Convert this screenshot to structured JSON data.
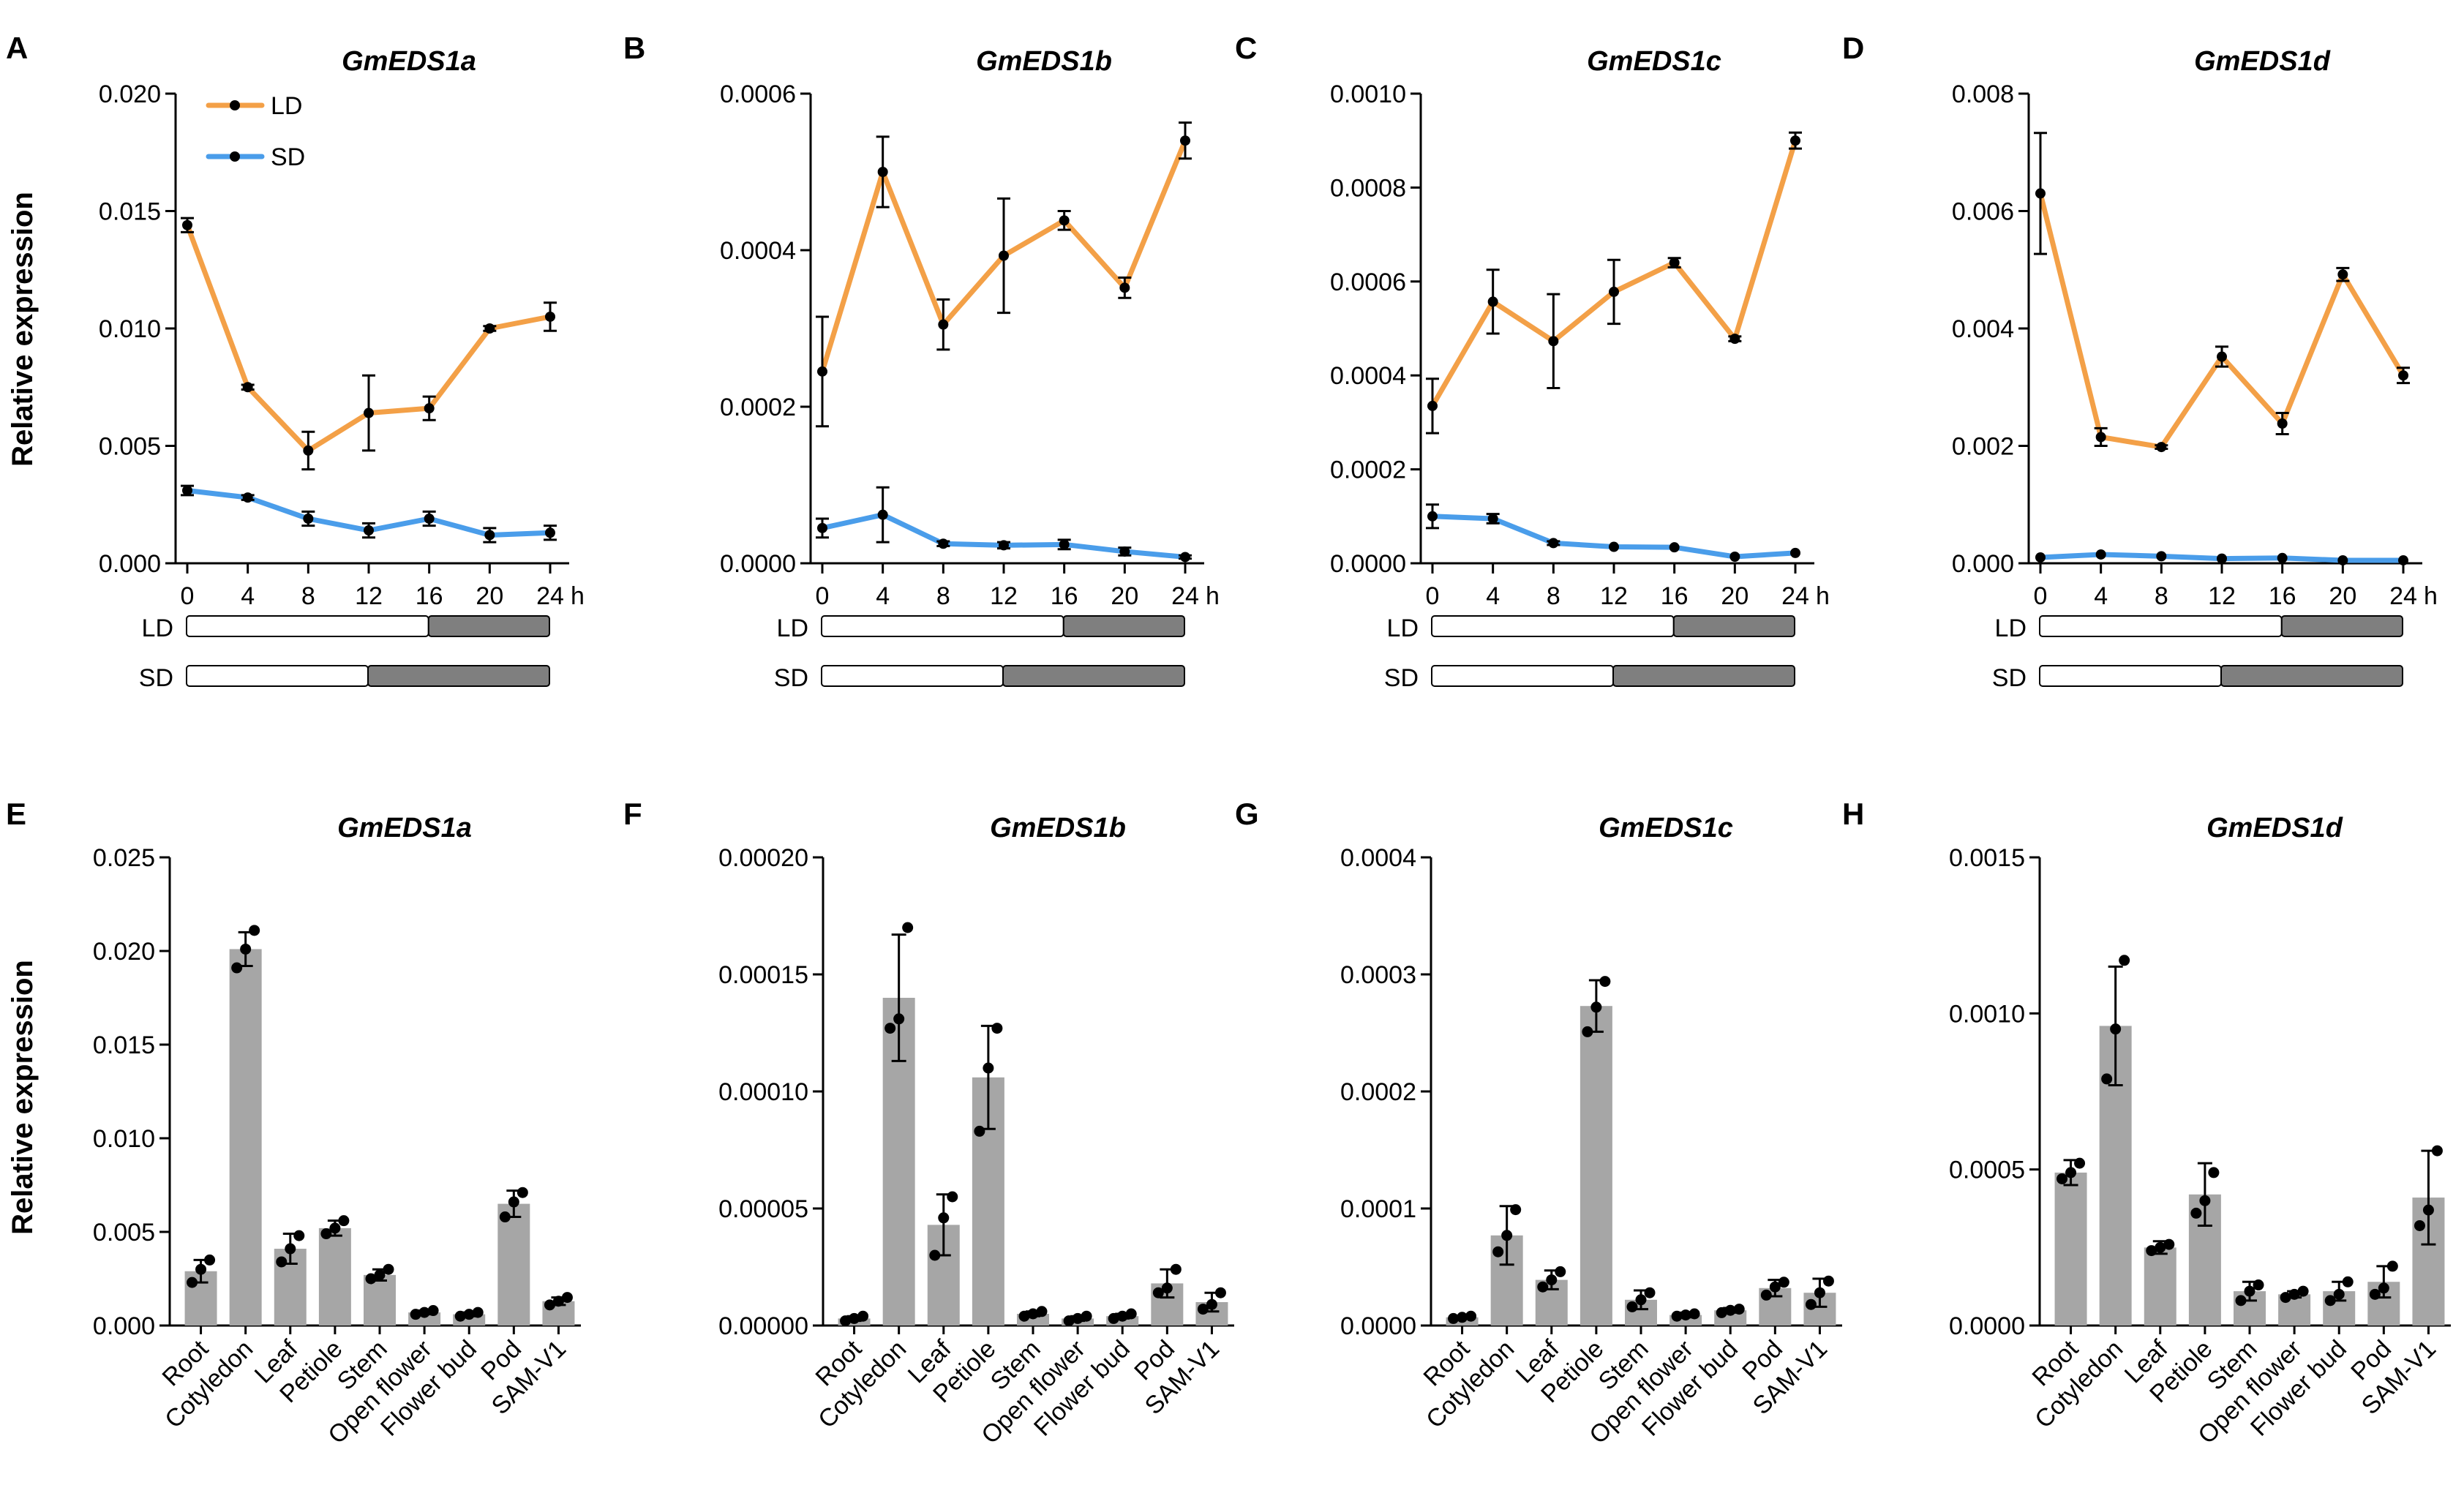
{
  "figure": {
    "ylabel": "Relative expression",
    "time_unit": "h",
    "legend": [
      {
        "label": "LD",
        "color": "#F3A047"
      },
      {
        "label": "SD",
        "color": "#4A9DEA"
      }
    ],
    "photoperiod_labels": [
      "LD",
      "SD"
    ]
  },
  "colors": {
    "LD": "#F3A047",
    "SD": "#4A9DEA",
    "bar": "#A6A6A6",
    "dark": "#7F7F7F"
  },
  "chart_data": [
    {
      "panel": "A",
      "type": "line",
      "title": "GmEDS1a",
      "x": [
        0,
        4,
        8,
        12,
        16,
        20,
        24
      ],
      "xticklabels": [
        "0",
        "4",
        "8",
        "12",
        "16",
        "20",
        "24"
      ],
      "ylim": [
        0,
        0.02
      ],
      "yticks": [
        0,
        0.005,
        0.01,
        0.015,
        0.02
      ],
      "yticklabels": [
        "0.000",
        "0.005",
        "0.010",
        "0.015",
        "0.020"
      ],
      "series": [
        {
          "name": "LD",
          "values": [
            0.0144,
            0.0075,
            0.0048,
            0.0064,
            0.0066,
            0.01,
            0.0105
          ],
          "errors": [
            0.0003,
            0.0001,
            0.0008,
            0.0016,
            0.0005,
            0.0001,
            0.0006
          ]
        },
        {
          "name": "SD",
          "values": [
            0.0031,
            0.0028,
            0.0019,
            0.0014,
            0.0019,
            0.0012,
            0.0013
          ],
          "errors": [
            0.0002,
            0.0001,
            0.0003,
            0.0003,
            0.0003,
            0.0003,
            0.0003
          ]
        }
      ],
      "photoperiod": {
        "LD_light_hours": 16,
        "SD_light_hours": 12
      }
    },
    {
      "panel": "B",
      "type": "line",
      "title": "GmEDS1b",
      "x": [
        0,
        4,
        8,
        12,
        16,
        20,
        24
      ],
      "xticklabels": [
        "0",
        "4",
        "8",
        "12",
        "16",
        "20",
        "24"
      ],
      "ylim": [
        0,
        0.0006
      ],
      "yticks": [
        0,
        0.0002,
        0.0004,
        0.0006
      ],
      "yticklabels": [
        "0.0000",
        "0.0002",
        "0.0004",
        "0.0006"
      ],
      "series": [
        {
          "name": "LD",
          "values": [
            0.000245,
            0.0005,
            0.000305,
            0.000393,
            0.000438,
            0.000352,
            0.00054
          ],
          "errors": [
            7e-05,
            4.5e-05,
            3.2e-05,
            7.3e-05,
            1.2e-05,
            1.3e-05,
            2.3e-05
          ]
        },
        {
          "name": "SD",
          "values": [
            4.5e-05,
            6.2e-05,
            2.5e-05,
            2.3e-05,
            2.4e-05,
            1.5e-05,
            8e-06
          ],
          "errors": [
            1.2e-05,
            3.5e-05,
            3e-06,
            4e-06,
            6e-06,
            5e-06,
            2e-06
          ]
        }
      ],
      "photoperiod": {
        "LD_light_hours": 16,
        "SD_light_hours": 12
      }
    },
    {
      "panel": "C",
      "type": "line",
      "title": "GmEDS1c",
      "x": [
        0,
        4,
        8,
        12,
        16,
        20,
        24
      ],
      "xticklabels": [
        "0",
        "4",
        "8",
        "12",
        "16",
        "20",
        "24"
      ],
      "ylim": [
        0,
        0.001
      ],
      "yticks": [
        0,
        0.0002,
        0.0004,
        0.0006,
        0.0008,
        0.001
      ],
      "yticklabels": [
        "0.0000",
        "0.0002",
        "0.0004",
        "0.0006",
        "0.0008",
        "0.0010"
      ],
      "series": [
        {
          "name": "LD",
          "values": [
            0.000335,
            0.000557,
            0.000473,
            0.000578,
            0.00064,
            0.000478,
            0.0009
          ],
          "errors": [
            5.8e-05,
            6.8e-05,
            0.0001,
            6.8e-05,
            1e-05,
            5e-06,
            1.7e-05
          ]
        },
        {
          "name": "SD",
          "values": [
            0.0001,
            9.5e-05,
            4.3e-05,
            3.5e-05,
            3.4e-05,
            1.4e-05,
            2.2e-05
          ],
          "errors": [
            2.5e-05,
            1e-05,
            4e-06,
            3e-06,
            3e-06,
            3e-06,
            3e-06
          ]
        }
      ],
      "photoperiod": {
        "LD_light_hours": 16,
        "SD_light_hours": 12
      }
    },
    {
      "panel": "D",
      "type": "line",
      "title": "GmEDS1d",
      "x": [
        0,
        4,
        8,
        12,
        16,
        20,
        24
      ],
      "xticklabels": [
        "0",
        "4",
        "8",
        "12",
        "16",
        "20",
        "24"
      ],
      "ylim": [
        0,
        0.008
      ],
      "yticks": [
        0,
        0.002,
        0.004,
        0.006,
        0.008
      ],
      "yticklabels": [
        "0.000",
        "0.002",
        "0.004",
        "0.006",
        "0.008"
      ],
      "series": [
        {
          "name": "LD",
          "values": [
            0.0063,
            0.00215,
            0.00198,
            0.00352,
            0.00238,
            0.00492,
            0.0032
          ],
          "errors": [
            0.00103,
            0.00015,
            3e-05,
            0.00017,
            0.00018,
            0.00011,
            0.00013
          ]
        },
        {
          "name": "SD",
          "values": [
            0.0001,
            0.00015,
            0.00012,
            8e-05,
            9e-05,
            5e-05,
            5e-05
          ],
          "errors": [
            2e-05,
            2e-05,
            2e-05,
            2e-05,
            2e-05,
            1e-05,
            1e-05
          ]
        }
      ],
      "photoperiod": {
        "LD_light_hours": 16,
        "SD_light_hours": 12
      }
    },
    {
      "panel": "E",
      "type": "bar",
      "title": "GmEDS1a",
      "categories": [
        "Root",
        "Cotyledon",
        "Leaf",
        "Petiole",
        "Stem",
        "Open flower",
        "Flower bud",
        "Pod",
        "SAM-V1"
      ],
      "ylim": [
        0,
        0.025
      ],
      "yticks": [
        0,
        0.005,
        0.01,
        0.015,
        0.02,
        0.025
      ],
      "yticklabels": [
        "0.000",
        "0.005",
        "0.010",
        "0.015",
        "0.020",
        "0.025"
      ],
      "values": [
        0.0029,
        0.0201,
        0.0041,
        0.0052,
        0.0027,
        0.0007,
        0.0006,
        0.0065,
        0.0013
      ],
      "errors": [
        0.0006,
        0.0009,
        0.0008,
        0.0004,
        0.0003,
        0.0001,
        0.0001,
        0.0007,
        0.0002
      ],
      "replicates": [
        [
          0.0023,
          0.003,
          0.0035
        ],
        [
          0.0191,
          0.0201,
          0.0211
        ],
        [
          0.0034,
          0.0041,
          0.0048
        ],
        [
          0.0049,
          0.0052,
          0.0056
        ],
        [
          0.0025,
          0.0027,
          0.003
        ],
        [
          0.0006,
          0.0007,
          0.0008
        ],
        [
          0.0005,
          0.0006,
          0.0007
        ],
        [
          0.0058,
          0.0066,
          0.0071
        ],
        [
          0.0011,
          0.0013,
          0.0015
        ]
      ]
    },
    {
      "panel": "F",
      "type": "bar",
      "title": "GmEDS1b",
      "categories": [
        "Root",
        "Cotyledon",
        "Leaf",
        "Petiole",
        "Stem",
        "Open flower",
        "Flower bud",
        "Pod",
        "SAM-V1"
      ],
      "ylim": [
        0,
        0.0002
      ],
      "yticks": [
        0,
        5e-05,
        0.0001,
        0.00015,
        0.0002
      ],
      "yticklabels": [
        "0.00000",
        "0.00005",
        "0.00010",
        "0.00015",
        "0.00020"
      ],
      "values": [
        3e-06,
        0.00014,
        4.3e-05,
        0.000106,
        5e-06,
        3e-06,
        4e-06,
        1.8e-05,
        1e-05
      ],
      "errors": [
        1e-06,
        2.7e-05,
        1.3e-05,
        2.2e-05,
        1e-06,
        1e-06,
        1e-06,
        6e-06,
        4e-06
      ],
      "replicates": [
        [
          2e-06,
          3e-06,
          4e-06
        ],
        [
          0.000127,
          0.000131,
          0.00017
        ],
        [
          3e-05,
          4.6e-05,
          5.5e-05
        ],
        [
          8.3e-05,
          0.00011,
          0.000127
        ],
        [
          4e-06,
          5e-06,
          6e-06
        ],
        [
          2e-06,
          3e-06,
          4e-06
        ],
        [
          3e-06,
          4e-06,
          5e-06
        ],
        [
          1.4e-05,
          1.6e-05,
          2.4e-05
        ],
        [
          7e-06,
          9e-06,
          1.4e-05
        ]
      ]
    },
    {
      "panel": "G",
      "type": "bar",
      "title": "GmEDS1c",
      "categories": [
        "Root",
        "Cotyledon",
        "Leaf",
        "Petiole",
        "Stem",
        "Open flower",
        "Flower bud",
        "Pod",
        "SAM-V1"
      ],
      "ylim": [
        0,
        0.0004
      ],
      "yticks": [
        0,
        0.0001,
        0.0002,
        0.0003,
        0.0004
      ],
      "yticklabels": [
        "0.0000",
        "0.0001",
        "0.0002",
        "0.0003",
        "0.0004"
      ],
      "values": [
        7e-06,
        7.7e-05,
        3.9e-05,
        0.000273,
        2.2e-05,
        9e-06,
        1.3e-05,
        3.2e-05,
        2.8e-05
      ],
      "errors": [
        1e-06,
        2.5e-05,
        8e-06,
        2.2e-05,
        8e-06,
        2e-06,
        2e-06,
        7e-06,
        1.2e-05
      ],
      "replicates": [
        [
          6e-06,
          7e-06,
          8e-06
        ],
        [
          6.3e-05,
          7.7e-05,
          9.9e-05
        ],
        [
          3.3e-05,
          3.9e-05,
          4.6e-05
        ],
        [
          0.000251,
          0.000272,
          0.000294
        ],
        [
          1.6e-05,
          2.2e-05,
          2.8e-05
        ],
        [
          8e-06,
          9e-06,
          1e-05
        ],
        [
          1.1e-05,
          1.3e-05,
          1.4e-05
        ],
        [
          2.6e-05,
          3.3e-05,
          3.7e-05
        ],
        [
          1.8e-05,
          2.8e-05,
          3.8e-05
        ]
      ]
    },
    {
      "panel": "H",
      "type": "bar",
      "title": "GmEDS1d",
      "categories": [
        "Root",
        "Cotyledon",
        "Leaf",
        "Petiole",
        "Stem",
        "Open flower",
        "Flower bud",
        "Pod",
        "SAM-V1"
      ],
      "ylim": [
        0,
        0.0015
      ],
      "yticks": [
        0,
        0.0005,
        0.001,
        0.0015
      ],
      "yticklabels": [
        "0.0000",
        "0.0005",
        "0.0010",
        "0.0015"
      ],
      "values": [
        0.00049,
        0.00096,
        0.00025,
        0.00042,
        0.00011,
        0.0001,
        0.00011,
        0.00014,
        0.00041
      ],
      "errors": [
        4e-05,
        0.00019,
        2e-05,
        0.0001,
        3e-05,
        1e-05,
        3e-05,
        5e-05,
        0.00015
      ],
      "replicates": [
        [
          0.00047,
          0.00049,
          0.00052
        ],
        [
          0.00079,
          0.00095,
          0.00117
        ],
        [
          0.00024,
          0.00025,
          0.00026
        ],
        [
          0.00036,
          0.0004,
          0.00049
        ],
        [
          8e-05,
          0.00011,
          0.00013
        ],
        [
          9e-05,
          0.0001,
          0.00011
        ],
        [
          8e-05,
          0.0001,
          0.00014
        ],
        [
          0.0001,
          0.00012,
          0.00019
        ],
        [
          0.00032,
          0.00037,
          0.00056
        ]
      ]
    }
  ]
}
